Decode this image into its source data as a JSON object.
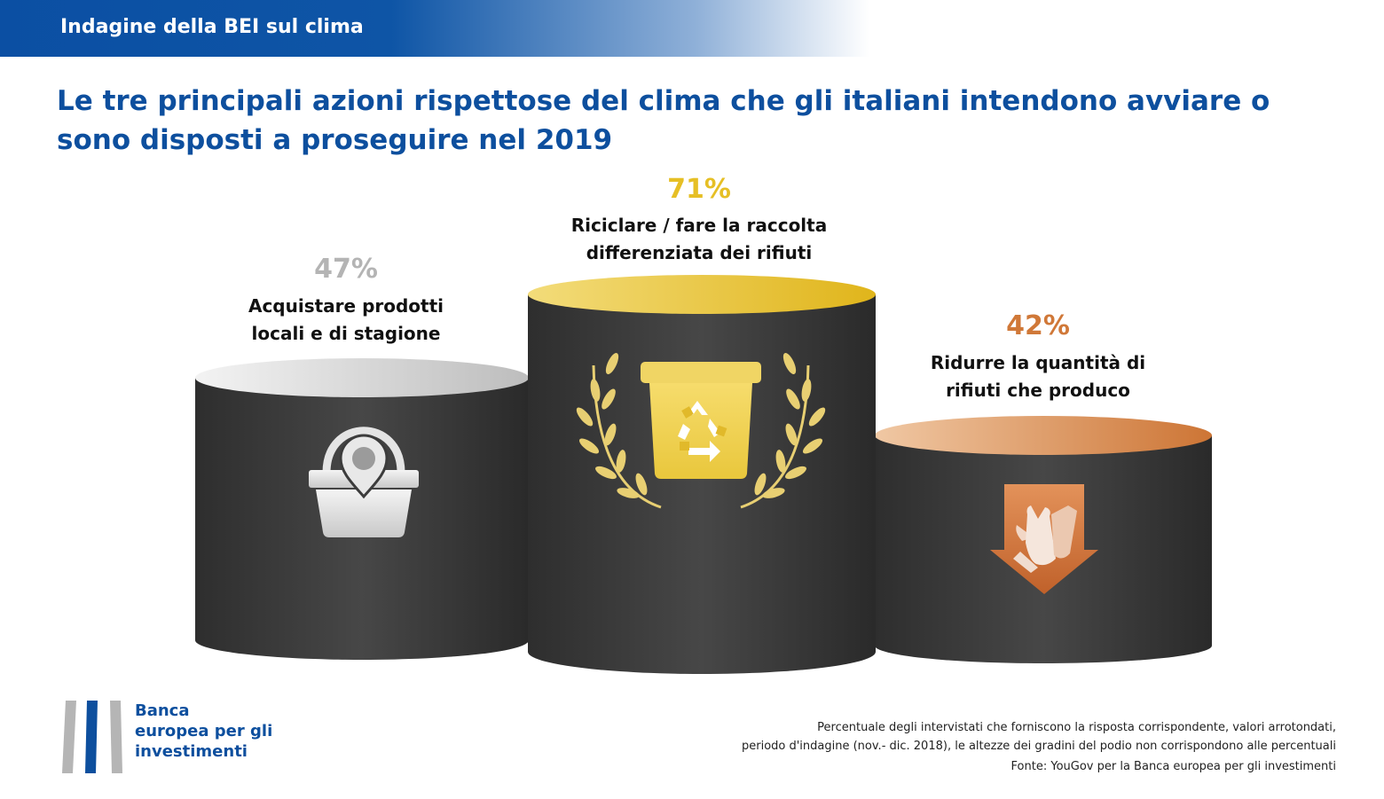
{
  "header": {
    "title": "Indagine della BEI sul clima"
  },
  "main_title": "Le tre principali azioni rispettose del clima che gli italiani intendono avviare o sono disposti a proseguire nel 2019",
  "chart_data": {
    "type": "bar",
    "title": "Le tre principali azioni rispettose del clima che gli italiani intendono avviare o sono disposti a proseguire nel 2019",
    "categories": [
      "Acquistare prodotti locali e di stagione",
      "Riciclare / fare la raccolta differenziata dei rifiuti",
      "Ridurre la quantità di rifiuti che produco"
    ],
    "values": [
      47,
      71,
      42
    ],
    "value_labels": [
      "47%",
      "71%",
      "42%"
    ],
    "ranks": [
      2,
      1,
      3
    ],
    "colors": [
      "#b4b4b4",
      "#e6bf25",
      "#d07838"
    ],
    "icons": [
      "shopping-basket-location-icon",
      "recycle-bin-laurel-icon",
      "waste-reduction-arrow-icon"
    ]
  },
  "podium": {
    "left": {
      "value_label": "47%",
      "label_line1": "Acquistare prodotti",
      "label_line2": "locali e di stagione"
    },
    "center": {
      "value_label": "71%",
      "label_line1": "Riciclare / fare la raccolta",
      "label_line2": "differenziata dei rifiuti"
    },
    "right": {
      "value_label": "42%",
      "label_line1": "Ridurre la quantità di",
      "label_line2": "rifiuti che produco"
    }
  },
  "logo": {
    "line1": "Banca",
    "line2": "europea per gli",
    "line3": "investimenti"
  },
  "footnote": {
    "line1": "Percentuale degli intervistati che forniscono la risposta corrispondente, valori arrotondati,",
    "line2": "periodo d'indagine (nov.- dic. 2018), le altezze dei gradini del podio non corrispondono alle percentuali"
  },
  "source": "Fonte: YouGov per la Banca europea per gli investimenti",
  "colors": {
    "brand_blue": "#0d4f9e",
    "podium_dark": "#3c3c3c",
    "silver": "#b4b4b4",
    "gold": "#e6bf25",
    "bronze": "#d07838"
  }
}
